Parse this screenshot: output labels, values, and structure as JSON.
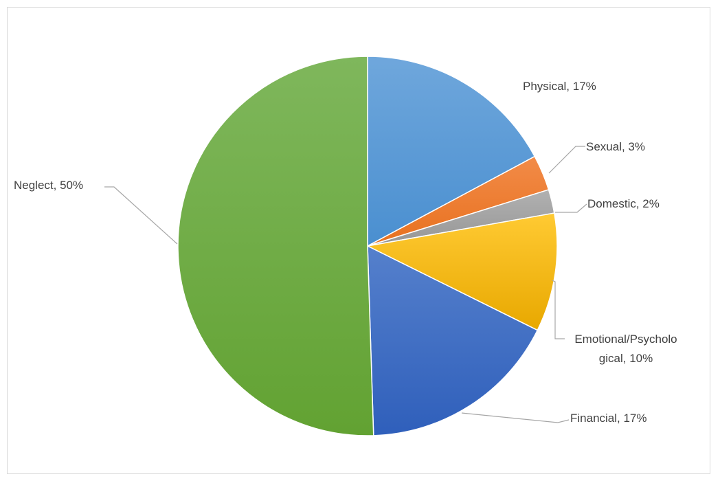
{
  "chart_data": {
    "type": "pie",
    "title": "",
    "slices": [
      {
        "category": "Physical",
        "value": 17,
        "label": "Physical, 17%",
        "color": "#5b9bd5"
      },
      {
        "category": "Sexual",
        "value": 3,
        "label": "Sexual, 3%",
        "color": "#ed7d31"
      },
      {
        "category": "Domestic",
        "value": 2,
        "label": "Domestic, 2%",
        "color": "#a5a5a5"
      },
      {
        "category": "Emotional/Psychological",
        "value": 10,
        "label": "Emotional/Psycholo gical, 10%",
        "label_lines": [
          "Emotional/Psycholo",
          "gical, 10%"
        ],
        "color": "#ffc000"
      },
      {
        "category": "Financial",
        "value": 17,
        "label": "Financial, 17%",
        "color": "#4472c4"
      },
      {
        "category": "Neglect",
        "value": 50,
        "label": "Neglect, 50%",
        "color": "#70ad47"
      }
    ],
    "start_angle": "12 o'clock",
    "direction": "clockwise",
    "legend": "none",
    "data_labels": "category name and percentage, outside with leader lines"
  }
}
